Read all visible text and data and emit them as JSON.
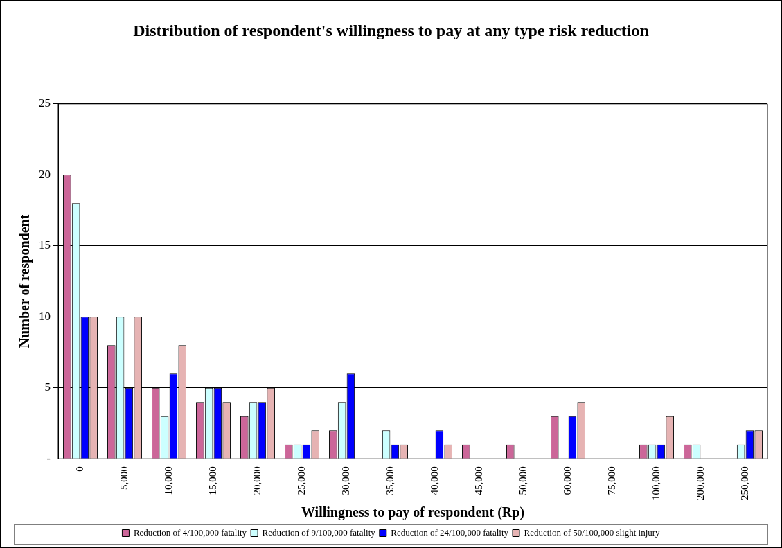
{
  "chart_data": {
    "type": "bar",
    "title": "Distribution of respondent's willingness to pay at any type risk reduction",
    "xlabel": "Willingness to pay of respondent (Rp)",
    "ylabel": "Number of respondent",
    "categories": [
      "0",
      "5,000",
      "10,000",
      "15,000",
      "20,000",
      "25,000",
      "30,000",
      "35,000",
      "40,000",
      "45,000",
      "50,000",
      "60,000",
      "75,000",
      "100,000",
      "200,000",
      "250,000"
    ],
    "series": [
      {
        "name": "Reduction of 4/100,000 fatality",
        "color": "#cc6699",
        "values": [
          20,
          8,
          5,
          4,
          3,
          1,
          2,
          0,
          0,
          1,
          1,
          3,
          0,
          1,
          1,
          0
        ]
      },
      {
        "name": "Reduction of 9/100,000 fatality",
        "color": "#ccffff",
        "values": [
          18,
          10,
          3,
          5,
          4,
          1,
          4,
          2,
          0,
          0,
          0,
          0,
          0,
          1,
          1,
          1
        ]
      },
      {
        "name": "Reduction of 24/100,000 fatality",
        "color": "#0000ff",
        "values": [
          10,
          5,
          6,
          5,
          4,
          1,
          6,
          1,
          2,
          0,
          0,
          3,
          0,
          1,
          0,
          2
        ]
      },
      {
        "name": "Reduction of 50/100,000 slight injury",
        "color": "#e6b3b3",
        "values": [
          10,
          10,
          8,
          4,
          5,
          2,
          0,
          1,
          1,
          0,
          0,
          4,
          0,
          3,
          0,
          2
        ]
      }
    ],
    "ylim": [
      0,
      25
    ],
    "yticks": [
      {
        "value": 0,
        "label": "-"
      },
      5,
      10,
      15,
      20,
      25
    ],
    "grid": "y",
    "legend": "bottom"
  }
}
